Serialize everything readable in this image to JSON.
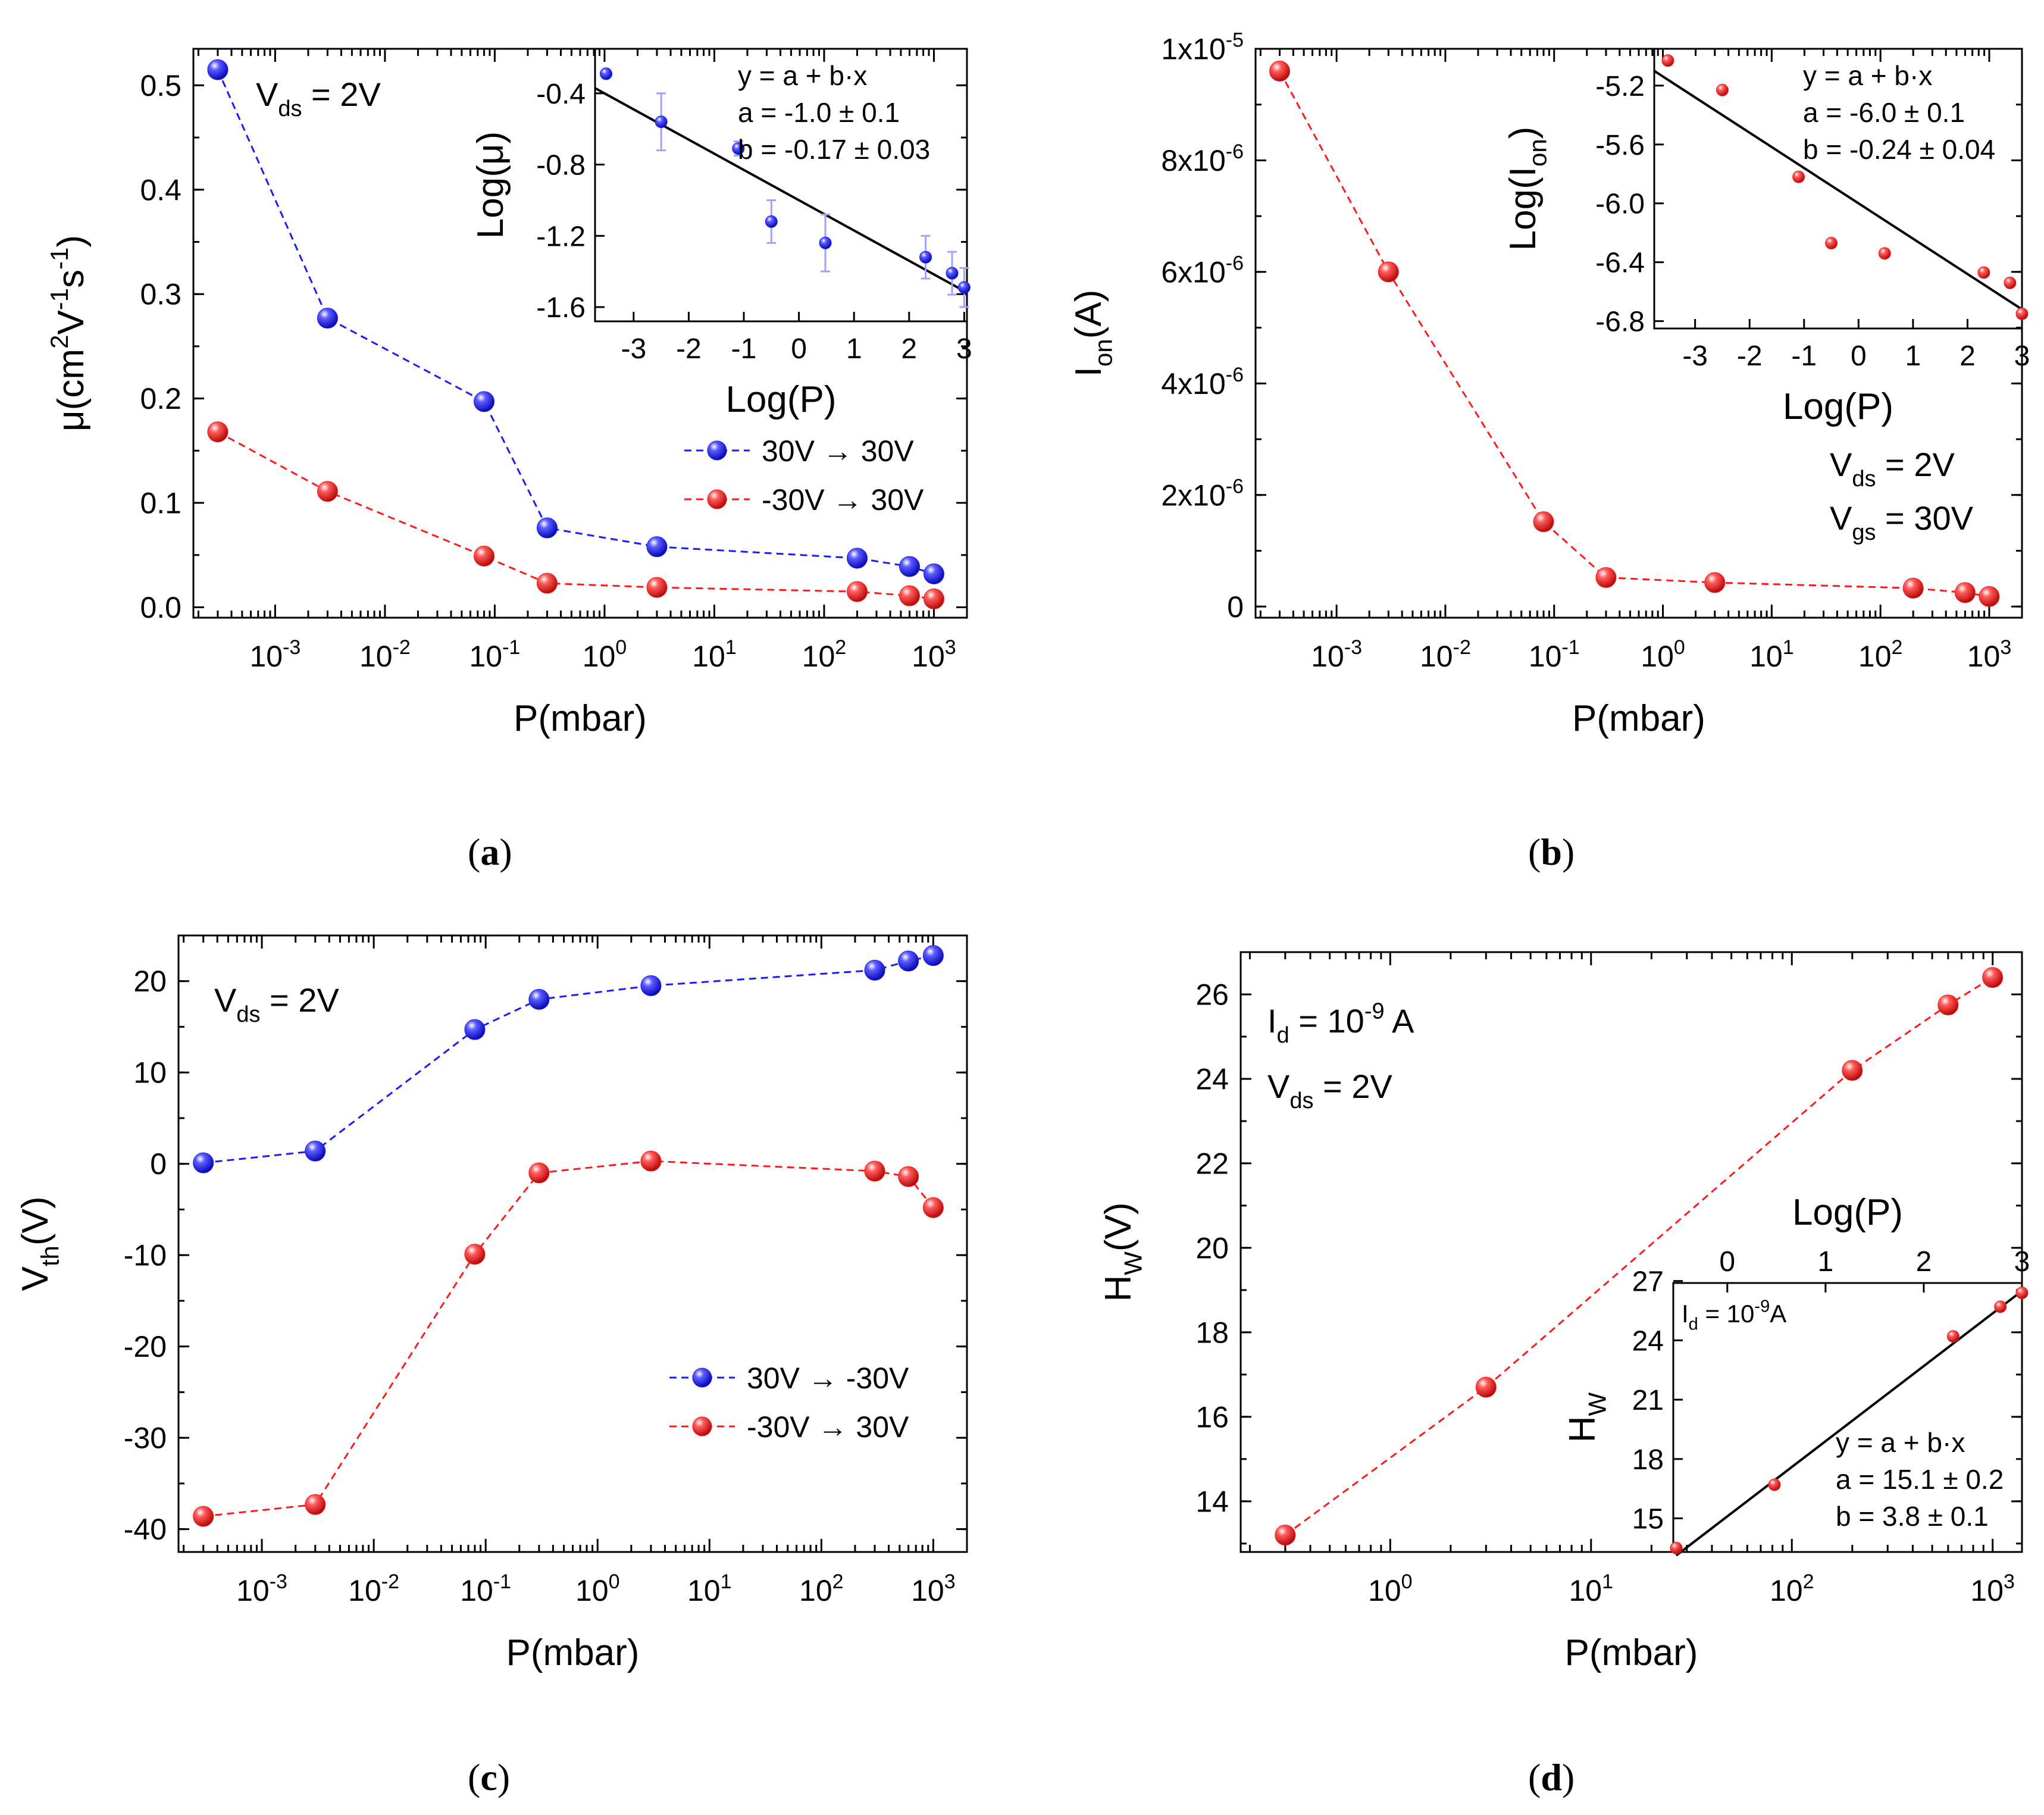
{
  "captions": [
    "a",
    "b",
    "c",
    "d"
  ],
  "colors": {
    "blue": "#1a1aff",
    "red": "#ff1a1a",
    "fit": "#000000",
    "errorbar": "#9fa3ff"
  },
  "chart_data": [
    {
      "panel": "a",
      "type": "scatter",
      "xscale": "log",
      "xlabel": "P(mbar)",
      "ylabel": "μ(cm²V⁻¹s⁻¹)",
      "xlim": [
        0.00018,
        2000
      ],
      "ylim": [
        -0.01,
        0.535
      ],
      "xticks": [
        "10^-3",
        "10^-2",
        "10^-1",
        "10^0",
        "10^1",
        "10^2",
        "10^3"
      ],
      "yticks": [
        "0.0",
        "0.1",
        "0.2",
        "0.3",
        "0.4",
        "0.5"
      ],
      "annotation": "V_ds = 2V",
      "legend_position": "center-right",
      "series": [
        {
          "name": "30V → 30V",
          "color": "blue",
          "x": [
            0.0003,
            0.003,
            0.08,
            0.3,
            3,
            200,
            600,
            1000
          ],
          "y": [
            0.515,
            0.277,
            0.197,
            0.076,
            0.058,
            0.047,
            0.039,
            0.032
          ]
        },
        {
          "name": "-30V → 30V",
          "color": "red",
          "x": [
            0.0003,
            0.003,
            0.08,
            0.3,
            3,
            200,
            600,
            1000
          ],
          "y": [
            0.168,
            0.111,
            0.049,
            0.023,
            0.019,
            0.015,
            0.011,
            0.008
          ]
        }
      ],
      "inset": {
        "type": "scatter",
        "xlabel": "Log(P)",
        "ylabel": "Log(μ)",
        "xlim": [
          -3.7,
          3.05
        ],
        "ylim": [
          -1.68,
          -0.15
        ],
        "xticks": [
          "-3",
          "-2",
          "-1",
          "0",
          "1",
          "2",
          "3"
        ],
        "yticks": [
          "-0.4",
          "-0.8",
          "-1.2",
          "-1.6"
        ],
        "fit": {
          "a": -1.0,
          "b": -0.17,
          "text": [
            "y = a + b·x",
            "a = -1.0 ± 0.1",
            "b = -0.17 ± 0.03"
          ]
        },
        "points": {
          "x": [
            -3.5,
            -2.5,
            -1.1,
            -0.5,
            0.48,
            2.3,
            2.78,
            3.0
          ],
          "y": [
            -0.29,
            -0.56,
            -0.71,
            -1.12,
            -1.24,
            -1.32,
            -1.41,
            -1.49
          ],
          "err": [
            0,
            0.16,
            0.04,
            0.12,
            0.16,
            0.12,
            0.12,
            0.11
          ]
        }
      }
    },
    {
      "panel": "b",
      "type": "scatter",
      "xscale": "log",
      "xlabel": "P(mbar)",
      "ylabel": "I_on(A)",
      "xlim": [
        0.00018,
        2000
      ],
      "ylim": [
        -2e-07,
        1e-05
      ],
      "xticks": [
        "10^-3",
        "10^-2",
        "10^-1",
        "10^0",
        "10^1",
        "10^2",
        "10^3"
      ],
      "yticks": [
        "0",
        "2x10^-6",
        "4x10^-6",
        "6x10^-6",
        "8x10^-6",
        "1x10^-5"
      ],
      "annotations": [
        "V_ds = 2V",
        "V_gs = 30V"
      ],
      "series": [
        {
          "name": "I_on",
          "color": "red",
          "x": [
            0.0003,
            0.003,
            0.08,
            0.3,
            3,
            200,
            600,
            1000
          ],
          "y": [
            9.6e-06,
            6e-06,
            1.52e-06,
            5.2e-07,
            4.3e-07,
            3.3e-07,
            2.5e-07,
            1.8e-07
          ]
        }
      ],
      "inset": {
        "type": "scatter",
        "xlabel": "Log(P)",
        "ylabel": "Log(I_on)",
        "xlim": [
          -3.75,
          3.0
        ],
        "ylim": [
          -6.85,
          -4.95
        ],
        "xticks": [
          "-3",
          "-2",
          "-1",
          "0",
          "1",
          "2",
          "3"
        ],
        "yticks": [
          "-5.2",
          "-5.6",
          "-6.0",
          "-6.4",
          "-6.8"
        ],
        "fit": {
          "a": -6.0,
          "b": -0.24,
          "text": [
            "y = a + b·x",
            "a = -6.0 ± 0.1",
            "b = -0.24 ± 0.04"
          ]
        },
        "points": {
          "x": [
            -3.5,
            -2.5,
            -1.1,
            -0.5,
            0.48,
            2.3,
            2.78,
            3.0
          ],
          "y": [
            -5.03,
            -5.23,
            -5.82,
            -6.27,
            -6.34,
            -6.47,
            -6.54,
            -6.75
          ]
        }
      }
    },
    {
      "panel": "c",
      "type": "scatter",
      "xscale": "log",
      "xlabel": "P(mbar)",
      "ylabel": "V_th(V)",
      "xlim": [
        0.00018,
        2000
      ],
      "ylim": [
        -42.5,
        25
      ],
      "xticks": [
        "10^-3",
        "10^-2",
        "10^-1",
        "10^0",
        "10^1",
        "10^2",
        "10^3"
      ],
      "yticks": [
        "-40",
        "-30",
        "-20",
        "-10",
        "0",
        "10",
        "20"
      ],
      "annotation": "V_ds = 2V",
      "legend_position": "lower-right",
      "series": [
        {
          "name": "30V → -30V",
          "color": "blue",
          "x": [
            0.0003,
            0.003,
            0.08,
            0.3,
            3,
            300,
            600,
            1000
          ],
          "y": [
            0.1,
            1.4,
            14.7,
            18.0,
            19.5,
            21.2,
            22.2,
            22.8
          ]
        },
        {
          "name": "-30V → 30V",
          "color": "red",
          "x": [
            0.0003,
            0.003,
            0.08,
            0.3,
            3,
            300,
            600,
            1000
          ],
          "y": [
            -38.6,
            -37.3,
            -9.9,
            -1.0,
            0.3,
            -0.8,
            -1.4,
            -4.8
          ]
        }
      ]
    },
    {
      "panel": "d",
      "type": "scatter",
      "xscale": "log",
      "xlabel": "P(mbar)",
      "ylabel": "H_W(V)",
      "xlim": [
        0.18,
        1400
      ],
      "ylim": [
        12.8,
        27.0
      ],
      "xticks": [
        "10^0",
        "10^1",
        "10^2",
        "10^3"
      ],
      "yticks": [
        "14",
        "16",
        "18",
        "20",
        "22",
        "24",
        "26"
      ],
      "annotations": [
        "I_d = 10^-9 A",
        "V_ds = 2V"
      ],
      "series": [
        {
          "name": "H_W",
          "color": "red",
          "x": [
            0.3,
            3,
            200,
            600,
            1000
          ],
          "y": [
            13.2,
            16.7,
            24.2,
            25.75,
            26.4
          ]
        }
      ],
      "inset": {
        "type": "scatter",
        "xlabel": "Log(P)",
        "ylabel": "H_W",
        "xlim": [
          -0.55,
          3.0
        ],
        "ylim": [
          13.3,
          26.9
        ],
        "xticks": [
          "0",
          "1",
          "2",
          "3"
        ],
        "yticks": [
          "15",
          "18",
          "21",
          "24",
          "27"
        ],
        "annotation": "I_d = 10^-9A",
        "fit": {
          "a": 15.1,
          "b": 3.8,
          "text": [
            "y = a + b·x",
            "a = 15.1 ± 0.2",
            "b = 3.8 ± 0.1"
          ]
        },
        "points": {
          "x": [
            -0.52,
            0.48,
            2.3,
            2.78,
            3.0
          ],
          "y": [
            13.5,
            16.7,
            24.2,
            25.7,
            26.4
          ]
        }
      }
    }
  ]
}
